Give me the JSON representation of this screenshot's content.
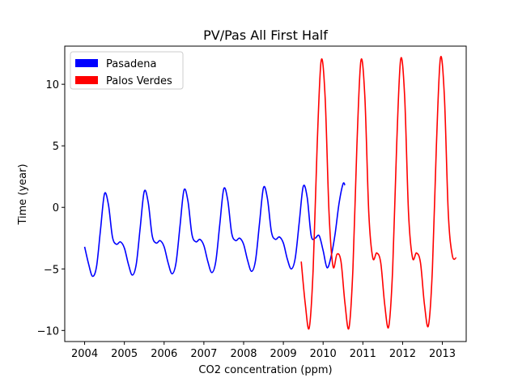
{
  "chart_data": {
    "type": "line",
    "title": "PV/Pas All First Half",
    "xlabel": "CO2 concentration (ppm)",
    "ylabel": "Time (year)",
    "xlim": [
      2003.5,
      2013.6
    ],
    "ylim": [
      -10.9,
      13.1
    ],
    "xticks": [
      2004,
      2005,
      2006,
      2007,
      2008,
      2009,
      2010,
      2011,
      2012,
      2013
    ],
    "yticks": [
      -10,
      -5,
      0,
      5,
      10
    ],
    "grid": false,
    "legend_position": "top-left",
    "series": [
      {
        "name": "Pasadena",
        "color": "#0000ff",
        "x_start": 2004.0,
        "x_end": 2010.55,
        "points": [
          [
            2004.0,
            -3.2
          ],
          [
            2004.1,
            -4.6
          ],
          [
            2004.2,
            -5.6
          ],
          [
            2004.3,
            -4.8
          ],
          [
            2004.4,
            -1.8
          ],
          [
            2004.5,
            1.1
          ],
          [
            2004.6,
            0.2
          ],
          [
            2004.7,
            -2.4
          ],
          [
            2004.8,
            -3.0
          ],
          [
            2004.9,
            -2.8
          ],
          [
            2005.0,
            -3.3
          ],
          [
            2005.1,
            -4.6
          ],
          [
            2005.2,
            -5.5
          ],
          [
            2005.3,
            -4.6
          ],
          [
            2005.4,
            -1.6
          ],
          [
            2005.5,
            1.3
          ],
          [
            2005.6,
            0.4
          ],
          [
            2005.7,
            -2.3
          ],
          [
            2005.8,
            -2.9
          ],
          [
            2005.9,
            -2.7
          ],
          [
            2006.0,
            -3.2
          ],
          [
            2006.1,
            -4.5
          ],
          [
            2006.2,
            -5.4
          ],
          [
            2006.3,
            -4.5
          ],
          [
            2006.4,
            -1.5
          ],
          [
            2006.5,
            1.4
          ],
          [
            2006.6,
            0.5
          ],
          [
            2006.7,
            -2.2
          ],
          [
            2006.8,
            -2.8
          ],
          [
            2006.9,
            -2.6
          ],
          [
            2007.0,
            -3.1
          ],
          [
            2007.1,
            -4.4
          ],
          [
            2007.2,
            -5.3
          ],
          [
            2007.3,
            -4.4
          ],
          [
            2007.4,
            -1.4
          ],
          [
            2007.5,
            1.5
          ],
          [
            2007.6,
            0.6
          ],
          [
            2007.7,
            -2.1
          ],
          [
            2007.8,
            -2.7
          ],
          [
            2007.9,
            -2.5
          ],
          [
            2008.0,
            -3.0
          ],
          [
            2008.1,
            -4.3
          ],
          [
            2008.2,
            -5.2
          ],
          [
            2008.3,
            -4.3
          ],
          [
            2008.4,
            -1.3
          ],
          [
            2008.5,
            1.6
          ],
          [
            2008.6,
            0.7
          ],
          [
            2008.7,
            -2.0
          ],
          [
            2008.8,
            -2.6
          ],
          [
            2008.9,
            -2.4
          ],
          [
            2009.0,
            -2.9
          ],
          [
            2009.1,
            -4.2
          ],
          [
            2009.2,
            -5.0
          ],
          [
            2009.3,
            -4.1
          ],
          [
            2009.4,
            -1.2
          ],
          [
            2009.5,
            1.7
          ],
          [
            2009.6,
            0.8
          ],
          [
            2009.7,
            -2.3
          ],
          [
            2009.8,
            -2.5
          ],
          [
            2009.9,
            -2.3
          ],
          [
            2010.0,
            -3.5
          ],
          [
            2010.1,
            -4.9
          ],
          [
            2010.2,
            -4.0
          ],
          [
            2010.3,
            -2.2
          ],
          [
            2010.4,
            0.3
          ],
          [
            2010.5,
            1.9
          ],
          [
            2010.55,
            1.8
          ]
        ]
      },
      {
        "name": "Palos Verdes",
        "color": "#ff0000",
        "x_start": 2009.45,
        "x_end": 2013.35,
        "points": [
          [
            2009.45,
            -4.4
          ],
          [
            2009.55,
            -7.8
          ],
          [
            2009.65,
            -9.8
          ],
          [
            2009.75,
            -5.0
          ],
          [
            2009.85,
            5.0
          ],
          [
            2009.95,
            11.9
          ],
          [
            2010.05,
            9.0
          ],
          [
            2010.15,
            -0.5
          ],
          [
            2010.25,
            -4.8
          ],
          [
            2010.35,
            -3.8
          ],
          [
            2010.45,
            -4.4
          ],
          [
            2010.55,
            -7.8
          ],
          [
            2010.65,
            -9.8
          ],
          [
            2010.75,
            -5.0
          ],
          [
            2010.85,
            5.0
          ],
          [
            2010.95,
            11.9
          ],
          [
            2011.05,
            9.0
          ],
          [
            2011.15,
            -0.5
          ],
          [
            2011.25,
            -4.1
          ],
          [
            2011.35,
            -3.7
          ],
          [
            2011.45,
            -4.5
          ],
          [
            2011.55,
            -7.9
          ],
          [
            2011.65,
            -9.7
          ],
          [
            2011.75,
            -5.0
          ],
          [
            2011.85,
            5.0
          ],
          [
            2011.95,
            12.0
          ],
          [
            2012.05,
            9.1
          ],
          [
            2012.15,
            -0.5
          ],
          [
            2012.25,
            -4.1
          ],
          [
            2012.35,
            -3.7
          ],
          [
            2012.45,
            -4.5
          ],
          [
            2012.55,
            -7.9
          ],
          [
            2012.65,
            -9.6
          ],
          [
            2012.75,
            -5.0
          ],
          [
            2012.85,
            5.0
          ],
          [
            2012.95,
            12.1
          ],
          [
            2013.05,
            9.1
          ],
          [
            2013.15,
            -0.5
          ],
          [
            2013.25,
            -3.9
          ],
          [
            2013.35,
            -4.1
          ]
        ]
      }
    ]
  }
}
